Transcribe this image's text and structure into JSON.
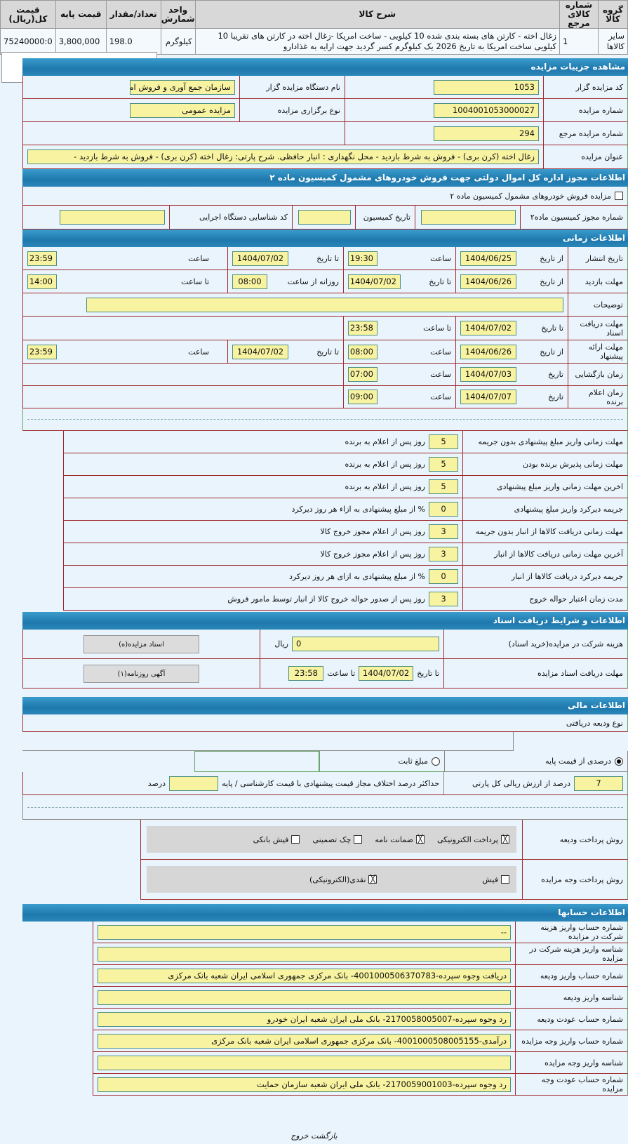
{
  "items_table": {
    "headers": [
      "گروه کالا",
      "شماره کالای مرجع",
      "شرح کالا",
      "واحد شمارش",
      "تعداد/مقدار",
      "قیمت پایه",
      "قیمت کل(ریال)"
    ],
    "rows": [
      {
        "group": "سایر کالاها",
        "ref": "1",
        "desc": "زغال اخته - کارتن های بسته بندی شده 10 کیلویی - ساخت امریکا -زغال اخته در کارتن های تقریبا 10 کیلویی ساخت امریکا به تاریخ 2026 یک کیلوگرم کسر گردید جهت ارایه به غذادارو",
        "unit": "کیلوگرم",
        "qty": "198.0",
        "base": "3,800,000",
        "total": "75240000:0"
      }
    ]
  },
  "details": {
    "title": "مشاهده جزییات مزایده",
    "code_label": "کد مزایده گزار",
    "code": "1053",
    "org_label": "نام دستگاه مزایده گزار",
    "org": "سازمان جمع آوری و فروش اموال",
    "num_label": "شماره مزایده",
    "num": "1004001053000027",
    "type_label": "نوع برگزاری مزایده",
    "type": "مزایده عمومی",
    "ref_label": "شماره مزایده مرجع",
    "ref": "294",
    "subject_label": "عنوان مزایده",
    "subject": "زغال اخته (کرن بری) - فروش به شرط بازدید - محل نگهداری : انبار حافظی. شرح پارتی: زغال اخته (کرن بری) - فروش به شرط بازدید -"
  },
  "permit": {
    "title": "اطلاعات مجوز اداره کل اموال دولتی جهت فروش خودروهای مشمول کمیسیون ماده ۲",
    "checkbox_label": "مزایده فروش خودروهای مشمول کمیسیون ماده ۲",
    "checked": false,
    "permit_no_label": "شماره مجوز کمیسیون ماده۲",
    "permit_no": "",
    "date_label": "تاریخ کمیسیون",
    "date": "",
    "id_label": "کد شناسایی دستگاه اجرایی",
    "id": ""
  },
  "timing": {
    "title": "اطلاعات زمانی",
    "from_date": "از تاریخ",
    "to_date": "تا تاریخ",
    "date": "تاریخ",
    "time": "ساعت",
    "to_time": "تا ساعت",
    "daily_from": "روزانه از ساعت",
    "publish": {
      "label": "تاریخ انتشار",
      "from": "1404/06/25",
      "from_time": "19:30",
      "to": "1404/07/02",
      "to_time": "23:59"
    },
    "visit": {
      "label": "مهلت بازدید",
      "from": "1404/06/26",
      "to": "1404/07/02",
      "daily_from": "08:00",
      "daily_to": "14:00"
    },
    "notes_label": "توضیحات",
    "notes": "",
    "docs_deadline": {
      "label": "مهلت دریافت اسناد",
      "to": "1404/07/02",
      "to_time": "23:58"
    },
    "offer": {
      "label": "مهلت ارائه پیشنهاد",
      "from": "1404/06/26",
      "from_time": "08:00",
      "to": "1404/07/02",
      "to_time": "23:59"
    },
    "opening": {
      "label": "زمان بازگشایی",
      "date": "1404/07/03",
      "time": "07:00"
    },
    "winner": {
      "label": "زمان اعلام برنده",
      "date": "1404/07/07",
      "time": "09:00"
    }
  },
  "penalties": [
    {
      "label": "مهلت زمانی واریز مبلغ پیشنهادی بدون جریمه",
      "value": "5",
      "suffix": "روز پس از اعلام به برنده"
    },
    {
      "label": "مهلت زمانی پذیرش برنده بودن",
      "value": "5",
      "suffix": "روز پس از اعلام به برنده"
    },
    {
      "label": "اخرین مهلت زمانی واریز مبلغ پیشنهادی",
      "value": "5",
      "suffix": "روز پس از اعلام به برنده"
    },
    {
      "label": "جریمه دیرکرد واریز مبلغ پیشنهادی",
      "value": "0",
      "suffix": "% از مبلغ پیشنهادی به ازاء هر روز دیرکرد"
    },
    {
      "label": "مهلت زمانی دریافت کالاها از انبار بدون جریمه",
      "value": "3",
      "suffix": "روز پس از اعلام مجوز خروج کالا"
    },
    {
      "label": "آخرین مهلت زمانی دریافت کالاها از انبار",
      "value": "3",
      "suffix": "روز پس از اعلام مجوز خروج کالا"
    },
    {
      "label": "جریمه دیرکرد دریافت کالاها از انبار",
      "value": "0",
      "suffix": "% از مبلغ پیشنهادی به ازای هر روز دیرکرد"
    },
    {
      "label": "مدت زمان اعتبار حواله خروج",
      "value": "3",
      "suffix": "روز پس از صدور حواله خروج کالا از انبار توسط مامور فروش"
    }
  ],
  "documents": {
    "title": "اطلاعات و شرایط دریافت اسناد",
    "fee_label": "هزینه شرکت در مزایده(خرید اسناد)",
    "fee": "0",
    "currency": "ریال",
    "docs_button": "اسناد مزایده(ه)",
    "deadline_label": "مهلت دریافت اسناد مزایده",
    "to_date": "تا تاریخ",
    "date": "1404/07/02",
    "to_time": "تا ساعت",
    "time": "23:58",
    "ad_button": "آگهی روزنامه(۱)"
  },
  "financial": {
    "title": "اطلاعات مالی",
    "deposit_type_label": "نوع ودیعه دریافتی",
    "percent_option": "درصدی از قیمت پایه",
    "fixed_option": "مبلغ ثابت",
    "selected": "percent",
    "percent": "7",
    "percent_suffix": "درصد از ارزش ریالی کل پارتی",
    "max_diff_label": "حداکثر درصد اختلاف مجاز قیمت پیشنهادی با قیمت کارشناسی / پایه",
    "max_diff": "",
    "max_diff_unit": "درصد",
    "deposit_methods_label": "روش پرداخت ودیعه",
    "deposit_methods": [
      {
        "label": "پرداخت الکترونیکی",
        "checked": true
      },
      {
        "label": "ضمانت نامه",
        "checked": true
      },
      {
        "label": "چک تضمینی",
        "checked": false
      },
      {
        "label": "فیش بانکی",
        "checked": false
      }
    ],
    "payment_methods_label": "روش پرداخت وجه مزایده",
    "payment_methods": [
      {
        "label": "فیش",
        "checked": false
      },
      {
        "label": "نقدی(الکترونیکی)",
        "checked": true
      }
    ]
  },
  "accounts": {
    "title": "اطلاعات حسابها",
    "rows": [
      {
        "label": "شماره حساب واریز هزینه شرکت در مزایده",
        "value": "--"
      },
      {
        "label": "شناسه واریز هزینه شرکت در مزایده",
        "value": ""
      },
      {
        "label": "شماره حساب واریز ودیعه",
        "value": "دریافت وجوه سپرده-4001000506370783- بانک مرکزی جمهوری اسلامی ایران شعبه بانک مرکزی"
      },
      {
        "label": "شناسه واریز ودیعه",
        "value": ""
      },
      {
        "label": "شماره حساب عودت ودیعه",
        "value": "رد وجوه سپرده-2170058005007- بانک ملی ایران شعبه ایران خودرو"
      },
      {
        "label": "شماره حساب واریز وجه مزایده",
        "value": "درآمدی-4001000508005155- بانک مرکزی جمهوری اسلامی ایران شعبه بانک مرکزی"
      },
      {
        "label": "شناسه واریز وجه مزایده",
        "value": ""
      },
      {
        "label": "شماره حساب عودت وجه مزایده",
        "value": "رد وجوه سپرده-2170059001003- بانک ملی ایران شعبه سازمان حمایت"
      }
    ]
  },
  "footer": {
    "back": "بازگشت",
    "exit": "خروج"
  }
}
